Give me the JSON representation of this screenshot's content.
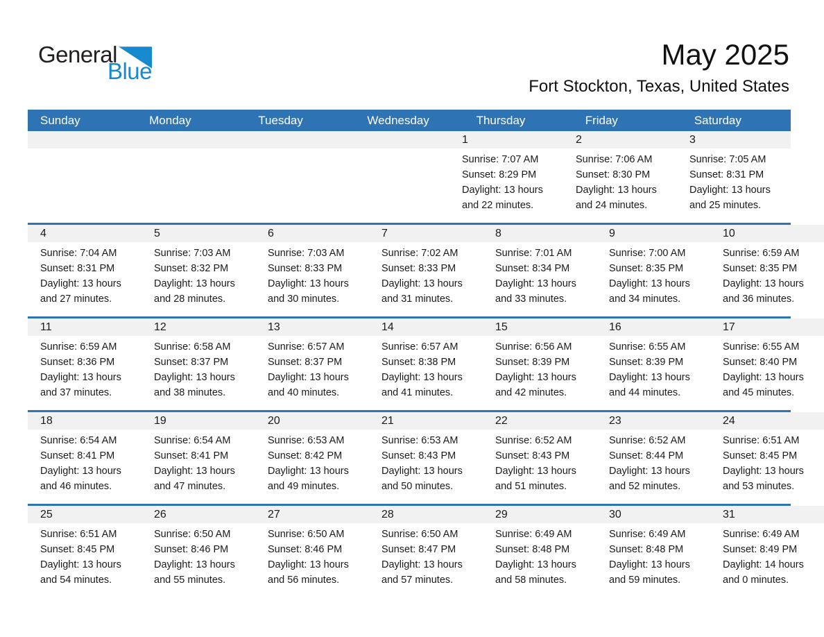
{
  "logo": {
    "word1": "General",
    "word2": "Blue"
  },
  "header": {
    "title": "May 2025",
    "subtitle": "Fort Stockton, Texas, United States"
  },
  "weekdays": [
    "Sunday",
    "Monday",
    "Tuesday",
    "Wednesday",
    "Thursday",
    "Friday",
    "Saturday"
  ],
  "labels": {
    "sunrise": "Sunrise:",
    "sunset": "Sunset:",
    "daylight": "Daylight:"
  },
  "weeks": [
    [
      null,
      null,
      null,
      null,
      {
        "day": "1",
        "sunrise": "7:07 AM",
        "sunset": "8:29 PM",
        "daylight": "13 hours and 22 minutes."
      },
      {
        "day": "2",
        "sunrise": "7:06 AM",
        "sunset": "8:30 PM",
        "daylight": "13 hours and 24 minutes."
      },
      {
        "day": "3",
        "sunrise": "7:05 AM",
        "sunset": "8:31 PM",
        "daylight": "13 hours and 25 minutes."
      }
    ],
    [
      {
        "day": "4",
        "sunrise": "7:04 AM",
        "sunset": "8:31 PM",
        "daylight": "13 hours and 27 minutes."
      },
      {
        "day": "5",
        "sunrise": "7:03 AM",
        "sunset": "8:32 PM",
        "daylight": "13 hours and 28 minutes."
      },
      {
        "day": "6",
        "sunrise": "7:03 AM",
        "sunset": "8:33 PM",
        "daylight": "13 hours and 30 minutes."
      },
      {
        "day": "7",
        "sunrise": "7:02 AM",
        "sunset": "8:33 PM",
        "daylight": "13 hours and 31 minutes."
      },
      {
        "day": "8",
        "sunrise": "7:01 AM",
        "sunset": "8:34 PM",
        "daylight": "13 hours and 33 minutes."
      },
      {
        "day": "9",
        "sunrise": "7:00 AM",
        "sunset": "8:35 PM",
        "daylight": "13 hours and 34 minutes."
      },
      {
        "day": "10",
        "sunrise": "6:59 AM",
        "sunset": "8:35 PM",
        "daylight": "13 hours and 36 minutes."
      }
    ],
    [
      {
        "day": "11",
        "sunrise": "6:59 AM",
        "sunset": "8:36 PM",
        "daylight": "13 hours and 37 minutes."
      },
      {
        "day": "12",
        "sunrise": "6:58 AM",
        "sunset": "8:37 PM",
        "daylight": "13 hours and 38 minutes."
      },
      {
        "day": "13",
        "sunrise": "6:57 AM",
        "sunset": "8:37 PM",
        "daylight": "13 hours and 40 minutes."
      },
      {
        "day": "14",
        "sunrise": "6:57 AM",
        "sunset": "8:38 PM",
        "daylight": "13 hours and 41 minutes."
      },
      {
        "day": "15",
        "sunrise": "6:56 AM",
        "sunset": "8:39 PM",
        "daylight": "13 hours and 42 minutes."
      },
      {
        "day": "16",
        "sunrise": "6:55 AM",
        "sunset": "8:39 PM",
        "daylight": "13 hours and 44 minutes."
      },
      {
        "day": "17",
        "sunrise": "6:55 AM",
        "sunset": "8:40 PM",
        "daylight": "13 hours and 45 minutes."
      }
    ],
    [
      {
        "day": "18",
        "sunrise": "6:54 AM",
        "sunset": "8:41 PM",
        "daylight": "13 hours and 46 minutes."
      },
      {
        "day": "19",
        "sunrise": "6:54 AM",
        "sunset": "8:41 PM",
        "daylight": "13 hours and 47 minutes."
      },
      {
        "day": "20",
        "sunrise": "6:53 AM",
        "sunset": "8:42 PM",
        "daylight": "13 hours and 49 minutes."
      },
      {
        "day": "21",
        "sunrise": "6:53 AM",
        "sunset": "8:43 PM",
        "daylight": "13 hours and 50 minutes."
      },
      {
        "day": "22",
        "sunrise": "6:52 AM",
        "sunset": "8:43 PM",
        "daylight": "13 hours and 51 minutes."
      },
      {
        "day": "23",
        "sunrise": "6:52 AM",
        "sunset": "8:44 PM",
        "daylight": "13 hours and 52 minutes."
      },
      {
        "day": "24",
        "sunrise": "6:51 AM",
        "sunset": "8:45 PM",
        "daylight": "13 hours and 53 minutes."
      }
    ],
    [
      {
        "day": "25",
        "sunrise": "6:51 AM",
        "sunset": "8:45 PM",
        "daylight": "13 hours and 54 minutes."
      },
      {
        "day": "26",
        "sunrise": "6:50 AM",
        "sunset": "8:46 PM",
        "daylight": "13 hours and 55 minutes."
      },
      {
        "day": "27",
        "sunrise": "6:50 AM",
        "sunset": "8:46 PM",
        "daylight": "13 hours and 56 minutes."
      },
      {
        "day": "28",
        "sunrise": "6:50 AM",
        "sunset": "8:47 PM",
        "daylight": "13 hours and 57 minutes."
      },
      {
        "day": "29",
        "sunrise": "6:49 AM",
        "sunset": "8:48 PM",
        "daylight": "13 hours and 58 minutes."
      },
      {
        "day": "30",
        "sunrise": "6:49 AM",
        "sunset": "8:48 PM",
        "daylight": "13 hours and 59 minutes."
      },
      {
        "day": "31",
        "sunrise": "6:49 AM",
        "sunset": "8:49 PM",
        "daylight": "14 hours and 0 minutes."
      }
    ]
  ],
  "colors": {
    "header_blue": "#2E74B5",
    "separator_blue": "#2E74B5",
    "band_gray": "#F1F1F1",
    "logo_blue": "#1789CE",
    "logo_black": "#221E1F",
    "text": "#1A1A1A"
  }
}
